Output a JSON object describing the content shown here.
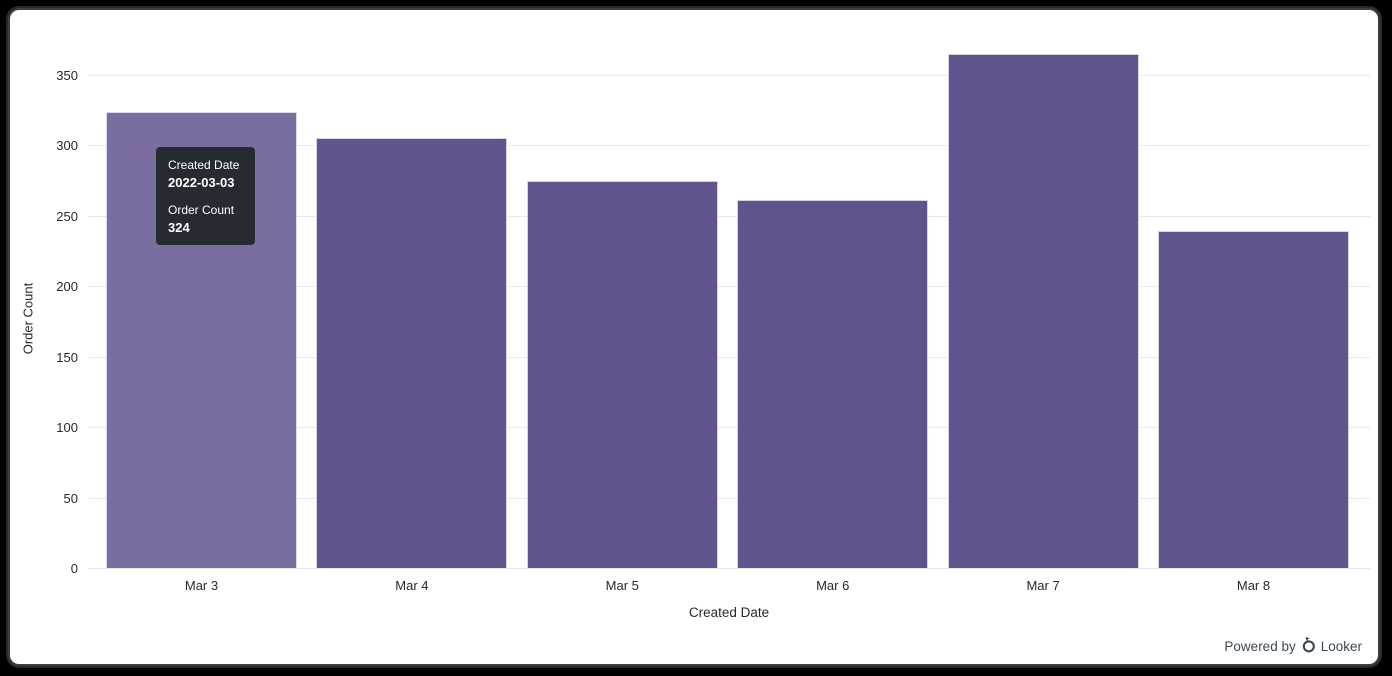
{
  "window": {
    "background": "#000000",
    "panel_background": "#FFFFFF"
  },
  "chart_data": {
    "type": "bar",
    "title": "",
    "categories": [
      "Mar 3",
      "Mar 4",
      "Mar 5",
      "Mar 6",
      "Mar 7",
      "Mar 8"
    ],
    "values": [
      324,
      305,
      275,
      261,
      365,
      239
    ],
    "series_name": "Order Count",
    "xlabel": "Created Date",
    "ylabel": "Order Count",
    "ylim": [
      0,
      350
    ],
    "yticks": [
      0,
      50,
      100,
      150,
      200,
      250,
      300,
      350
    ],
    "grid": true,
    "legend": "none",
    "hovered_index": 0,
    "colors": {
      "bar": "#61548C",
      "bar_hover": "#7A6EA0",
      "gridline": "#E7E7E7",
      "axis_text": "#282828"
    }
  },
  "tooltip": {
    "dimension_label": "Created Date",
    "dimension_value": "2022-03-03",
    "measure_label": "Order Count",
    "measure_value": "324",
    "background": "#262B31",
    "text_color": "#FFFFFF"
  },
  "footer": {
    "powered_by": "Powered by",
    "brand": "Looker",
    "text_color": "#3D4852"
  }
}
